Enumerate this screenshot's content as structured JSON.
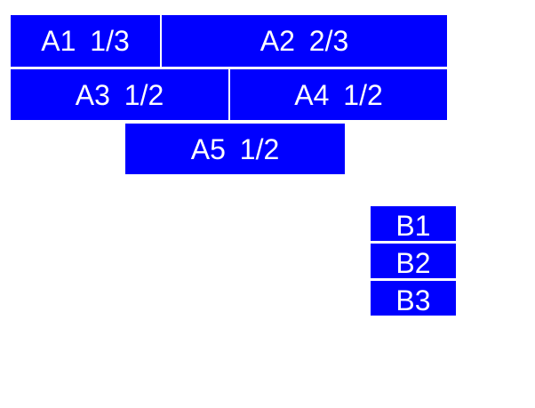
{
  "colors": {
    "page_bg": "#ffffff",
    "block_bg": "#0000ff",
    "block_text": "#ffffff"
  },
  "blocks": {
    "a1": "A1 1/3",
    "a2": "A2 2/3",
    "a3": "A3 1/2",
    "a4": "A4 1/2",
    "a5": "A5 1/2",
    "b1": "B1",
    "b2": "B2",
    "b3": "B3"
  }
}
